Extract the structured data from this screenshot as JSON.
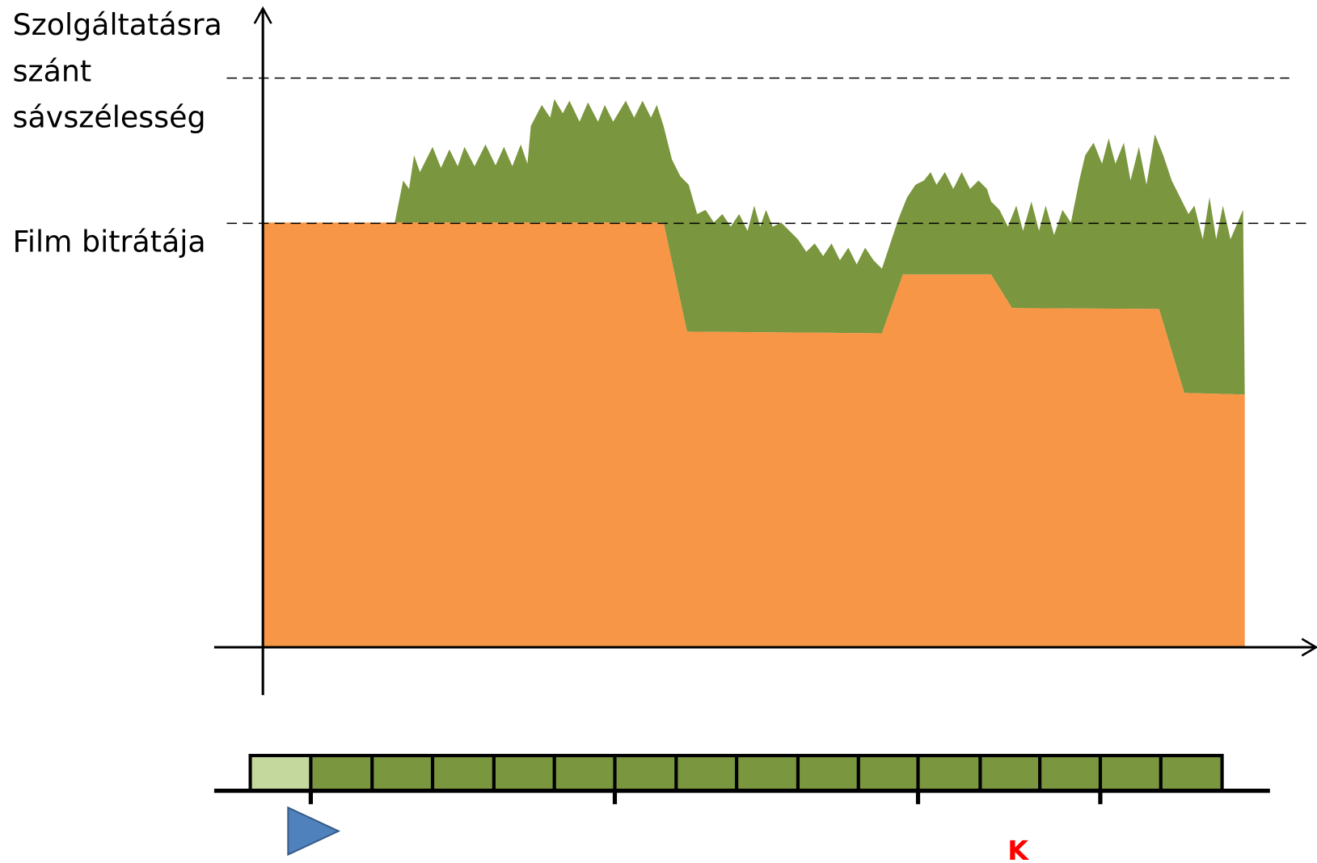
{
  "y_axis_label": {
    "lines": [
      "Szolgáltatásra",
      "szánt",
      "sávszélesség"
    ]
  },
  "level_label": "Film bitrátája",
  "marker_label": "K"
}
